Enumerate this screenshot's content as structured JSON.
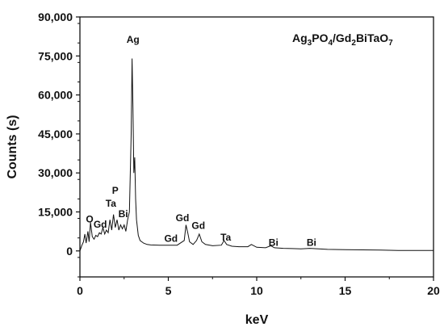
{
  "chart_data": {
    "type": "line",
    "title_parts": [
      {
        "t": "Ag",
        "sub": false
      },
      {
        "t": "3",
        "sub": true
      },
      {
        "t": "PO",
        "sub": false
      },
      {
        "t": "4",
        "sub": true
      },
      {
        "t": "/Gd",
        "sub": false
      },
      {
        "t": "2",
        "sub": true
      },
      {
        "t": "BiTaO",
        "sub": false
      },
      {
        "t": "7",
        "sub": true
      }
    ],
    "xlabel": "keV",
    "ylabel": "Counts (s)",
    "xlim": [
      0,
      20
    ],
    "ylim": [
      -10000,
      90000
    ],
    "x_ticks": [
      0,
      5,
      10,
      15,
      20
    ],
    "x_tick_labels": [
      "0",
      "5",
      "10",
      "15",
      "20"
    ],
    "y_ticks": [
      0,
      15000,
      30000,
      45000,
      60000,
      75000,
      90000
    ],
    "y_tick_labels": [
      "0",
      "15,000",
      "30,000",
      "45,000",
      "60,000",
      "75,000",
      "90,000"
    ],
    "grid": false,
    "series": [
      {
        "x": [
          0.0,
          0.1,
          0.2,
          0.28,
          0.35,
          0.45,
          0.52,
          0.6,
          0.7,
          0.8,
          0.9,
          1.0,
          1.1,
          1.2,
          1.3,
          1.4,
          1.5,
          1.6,
          1.7,
          1.8,
          1.9,
          2.0,
          2.1,
          2.2,
          2.3,
          2.4,
          2.5,
          2.6,
          2.7,
          2.8,
          2.9,
          2.95,
          3.0,
          3.05,
          3.1,
          3.15,
          3.2,
          3.3,
          3.4,
          3.6,
          3.8,
          4.0,
          4.5,
          5.0,
          5.5,
          5.9,
          6.0,
          6.1,
          6.2,
          6.4,
          6.6,
          6.75,
          6.9,
          7.1,
          7.5,
          8.0,
          8.15,
          8.3,
          8.6,
          9.0,
          9.5,
          9.7,
          10.0,
          10.5,
          10.8,
          11.0,
          11.5,
          12.0,
          12.5,
          13.0,
          13.5,
          14.0,
          15.0,
          16.0,
          17.0,
          18.0,
          19.0,
          20.0
        ],
        "y": [
          0,
          2000,
          3500,
          6500,
          3000,
          7500,
          3500,
          11000,
          5500,
          4500,
          6000,
          5500,
          7000,
          6500,
          9000,
          6500,
          8000,
          7000,
          12000,
          8000,
          14000,
          9000,
          12000,
          8000,
          10000,
          8500,
          10000,
          7500,
          12000,
          15000,
          45000,
          74000,
          55000,
          30000,
          36000,
          20000,
          12000,
          6000,
          4000,
          3000,
          2500,
          2300,
          2200,
          2200,
          2200,
          4000,
          10000,
          7000,
          3500,
          2500,
          4000,
          6500,
          3500,
          2500,
          2000,
          2200,
          4000,
          2500,
          1800,
          1600,
          1600,
          2500,
          1400,
          1200,
          2000,
          1200,
          1000,
          900,
          800,
          1000,
          800,
          600,
          500,
          400,
          300,
          200,
          200,
          150
        ]
      }
    ],
    "annotations": [
      {
        "text": "Ag",
        "x": 3.0,
        "y": 80000
      },
      {
        "text": "P",
        "x": 2.0,
        "y": 22000
      },
      {
        "text": "Ta",
        "x": 1.75,
        "y": 17000
      },
      {
        "text": "Bi",
        "x": 2.45,
        "y": 13000
      },
      {
        "text": "O",
        "x": 0.55,
        "y": 11000
      },
      {
        "text": "Gd",
        "x": 1.15,
        "y": 9000
      },
      {
        "text": "Gd",
        "x": 5.8,
        "y": 11500
      },
      {
        "text": "Gd",
        "x": 6.7,
        "y": 8500
      },
      {
        "text": "Gd",
        "x": 5.15,
        "y": 3500
      },
      {
        "text": "Ta",
        "x": 8.25,
        "y": 4000
      },
      {
        "text": "Bi",
        "x": 10.95,
        "y": 2000
      },
      {
        "text": "Bi",
        "x": 13.1,
        "y": 2000
      }
    ],
    "colors": {
      "line": "#111111",
      "axis": "#111111"
    }
  }
}
